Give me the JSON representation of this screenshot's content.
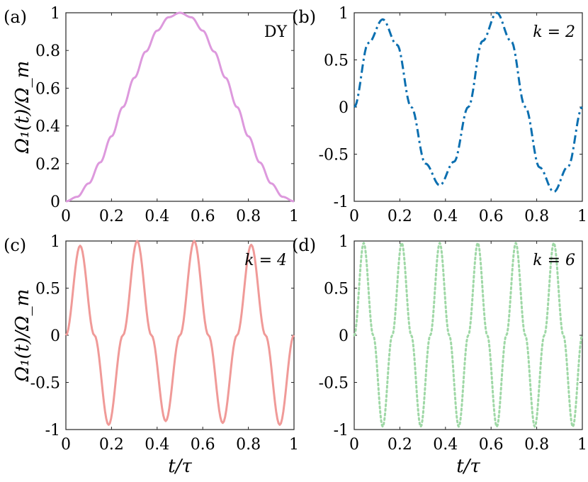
{
  "figure": {
    "ylabel": "Ω₁(t)/Ω_m",
    "xlabel": "t/τ"
  },
  "chart_data": [
    {
      "type": "line",
      "panel_label": "(a)",
      "annotation": "DY",
      "xlim": [
        0,
        1
      ],
      "ylim": [
        0,
        1
      ],
      "xticks": [
        "0",
        "0.2",
        "0.4",
        "0.6",
        "0.8",
        "1"
      ],
      "yticks": [
        "0",
        "0.2",
        "0.4",
        "0.6",
        "0.8",
        "1"
      ],
      "x": [
        0,
        0.05,
        0.1,
        0.15,
        0.2,
        0.25,
        0.3,
        0.35,
        0.4,
        0.45,
        0.5,
        0.55,
        0.6,
        0.65,
        0.7,
        0.75,
        0.8,
        0.85,
        0.9,
        0.95,
        1
      ],
      "series": [
        {
          "color": "#dd99dd",
          "style": "solid",
          "values": [
            0,
            0.024,
            0.095,
            0.206,
            0.345,
            0.5,
            0.655,
            0.794,
            0.905,
            0.976,
            1,
            0.976,
            0.905,
            0.794,
            0.655,
            0.5,
            0.345,
            0.206,
            0.095,
            0.024,
            0
          ]
        }
      ],
      "grid": false
    },
    {
      "type": "line",
      "panel_label": "(b)",
      "annotation": "k = 2",
      "xlim": [
        0,
        1
      ],
      "ylim": [
        -1,
        1
      ],
      "xticks": [
        "0",
        "0.2",
        "0.4",
        "0.6",
        "0.8",
        "1"
      ],
      "yticks": [
        "-1",
        "-0.5",
        "0",
        "0.5",
        "1"
      ],
      "x": [
        0,
        0.0625,
        0.125,
        0.1875,
        0.25,
        0.3125,
        0.375,
        0.4375,
        0.5,
        0.5625,
        0.625,
        0.6875,
        0.75,
        0.8125,
        0.875,
        0.9375,
        1
      ],
      "series": [
        {
          "color": "#0b6fb0",
          "style": "dashdot",
          "values": [
            0,
            0.68,
            0.93,
            0.66,
            0,
            -0.6,
            -0.83,
            -0.58,
            0,
            0.7,
            1.0,
            0.7,
            0,
            -0.64,
            -0.9,
            -0.63,
            0
          ]
        }
      ],
      "grid": false
    },
    {
      "type": "line",
      "panel_label": "(c)",
      "annotation": "k = 4",
      "xlim": [
        0,
        1
      ],
      "ylim": [
        -1,
        1
      ],
      "xticks": [
        "0",
        "0.2",
        "0.4",
        "0.6",
        "0.8",
        "1"
      ],
      "yticks": [
        "-1",
        "-0.5",
        "0",
        "0.5",
        "1"
      ],
      "x": [
        0,
        0.0625,
        0.125,
        0.1875,
        0.25,
        0.3125,
        0.375,
        0.4375,
        0.5,
        0.5625,
        0.625,
        0.6875,
        0.75,
        0.8125,
        0.875,
        0.9375,
        1
      ],
      "series": [
        {
          "color": "#f09a98",
          "style": "solid",
          "values": [
            0,
            0.95,
            0,
            -0.95,
            0,
            1.0,
            0,
            -0.91,
            0,
            1.0,
            0,
            -0.93,
            0,
            0.96,
            0,
            -0.95,
            0
          ]
        }
      ],
      "grid": false
    },
    {
      "type": "line",
      "panel_label": "(d)",
      "annotation": "k = 6",
      "xlim": [
        0,
        1
      ],
      "ylim": [
        -1,
        1
      ],
      "xticks": [
        "0",
        "0.2",
        "0.4",
        "0.6",
        "0.8",
        "1"
      ],
      "yticks": [
        "-1",
        "-0.5",
        "0",
        "0.5",
        "1"
      ],
      "x": [
        0,
        0.0417,
        0.0833,
        0.125,
        0.1667,
        0.2083,
        0.25,
        0.2917,
        0.3333,
        0.375,
        0.4167,
        0.4583,
        0.5,
        0.5417,
        0.5833,
        0.625,
        0.6667,
        0.7083,
        0.75,
        0.7917,
        0.8333,
        0.875,
        0.9167,
        0.9583,
        1
      ],
      "series": [
        {
          "color": "#9fd8a6",
          "style": "dotted",
          "values": [
            0,
            0.98,
            0,
            -0.97,
            0,
            0.98,
            0,
            -0.97,
            0,
            0.98,
            0,
            -0.97,
            0,
            0.98,
            0,
            -0.97,
            0,
            0.98,
            0,
            -0.97,
            0,
            0.98,
            0,
            -0.97,
            0
          ]
        }
      ],
      "grid": false
    }
  ]
}
